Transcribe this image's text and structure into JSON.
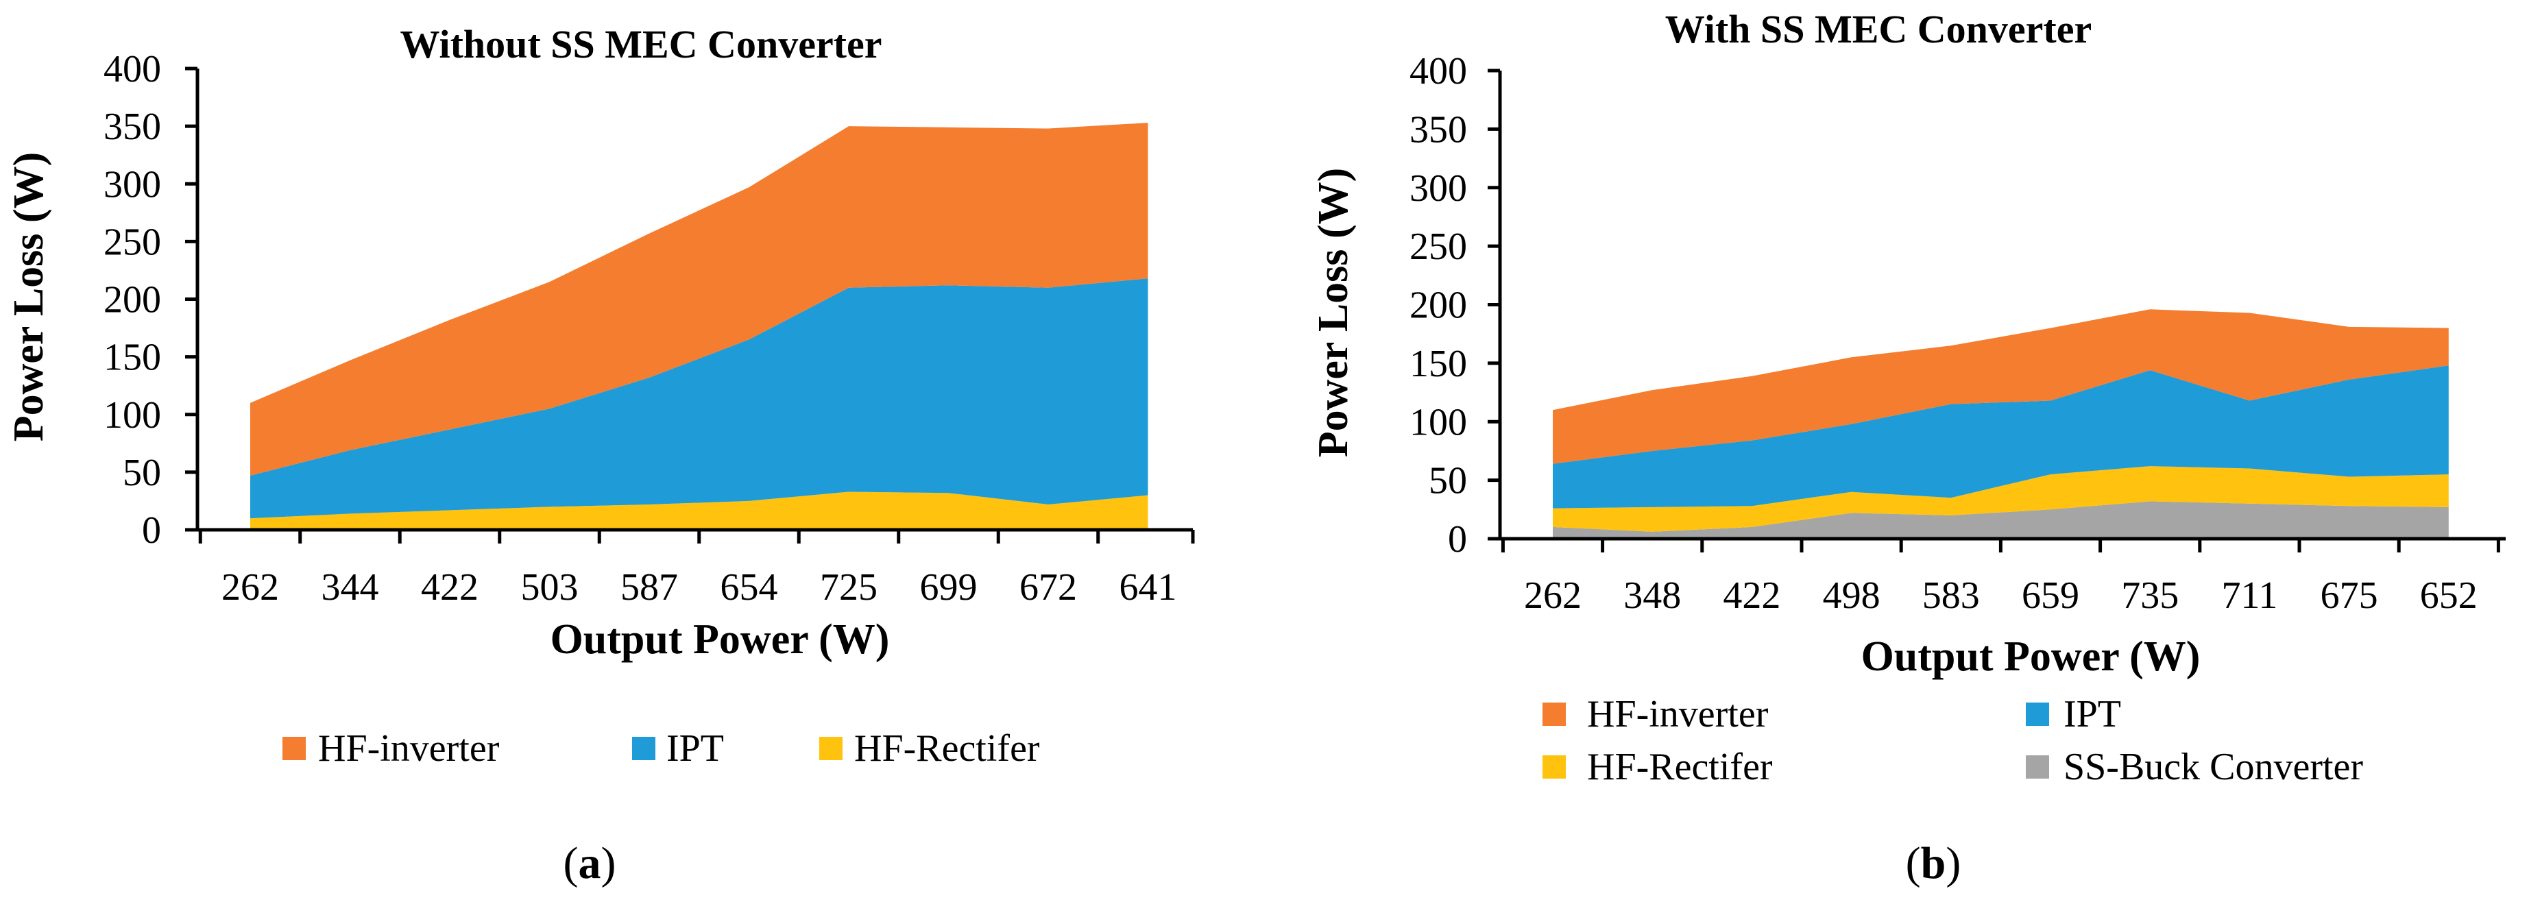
{
  "colors": {
    "hf_inverter": "#F47D30",
    "ipt": "#1F9BD7",
    "hf_rectifier": "#FFC20E",
    "ss_buck": "#A5A5A5",
    "axis": "#000000"
  },
  "chart_data": [
    {
      "panel": "a",
      "type": "area",
      "stacked": true,
      "title": "Without SS MEC Converter",
      "xlabel": "Output Power (W)",
      "ylabel": "Power Loss (W)",
      "ylim": [
        0,
        400
      ],
      "yticks": [
        "0",
        "50",
        "100",
        "150",
        "200",
        "250",
        "300",
        "350",
        "400"
      ],
      "categories": [
        "262",
        "344",
        "422",
        "503",
        "587",
        "654",
        "725",
        "699",
        "672",
        "641"
      ],
      "series": [
        {
          "name": "HF-Rectifer",
          "color_key": "hf_rectifier",
          "values": [
            10,
            14,
            17,
            20,
            22,
            25,
            33,
            32,
            22,
            30
          ]
        },
        {
          "name": "IPT",
          "color_key": "ipt",
          "values": [
            37,
            55,
            70,
            85,
            110,
            140,
            177,
            180,
            188,
            188
          ]
        },
        {
          "name": "HF-inverter",
          "color_key": "hf_inverter",
          "values": [
            63,
            78,
            95,
            110,
            125,
            132,
            140,
            137,
            138,
            135
          ]
        }
      ],
      "legend": [
        "HF-inverter",
        "IPT",
        "HF-Rectifer"
      ],
      "legend_position": "bottom",
      "caption_label": "a"
    },
    {
      "panel": "b",
      "type": "area",
      "stacked": true,
      "title": "With SS MEC Converter",
      "xlabel": "Output Power (W)",
      "ylabel": "Power Loss (W)",
      "ylim": [
        0,
        400
      ],
      "yticks": [
        "0",
        "50",
        "100",
        "150",
        "200",
        "250",
        "300",
        "350",
        "400"
      ],
      "categories": [
        "262",
        "348",
        "422",
        "498",
        "583",
        "659",
        "735",
        "711",
        "675",
        "652"
      ],
      "series": [
        {
          "name": "SS-Buck Converter",
          "color_key": "ss_buck",
          "values": [
            10,
            6,
            10,
            22,
            20,
            25,
            32,
            30,
            28,
            27
          ]
        },
        {
          "name": "HF-Rectifer",
          "color_key": "hf_rectifier",
          "values": [
            16,
            21,
            18,
            18,
            15,
            30,
            30,
            30,
            25,
            28
          ]
        },
        {
          "name": "IPT",
          "color_key": "ipt",
          "values": [
            38,
            48,
            56,
            58,
            80,
            63,
            82,
            58,
            83,
            93
          ]
        },
        {
          "name": "HF-inverter",
          "color_key": "hf_inverter",
          "values": [
            46,
            52,
            55,
            57,
            50,
            62,
            52,
            75,
            45,
            32
          ]
        }
      ],
      "legend": [
        "HF-inverter",
        "IPT",
        "HF-Rectifer",
        "SS-Buck Converter"
      ],
      "legend_position": "bottom",
      "caption_label": "b"
    }
  ]
}
